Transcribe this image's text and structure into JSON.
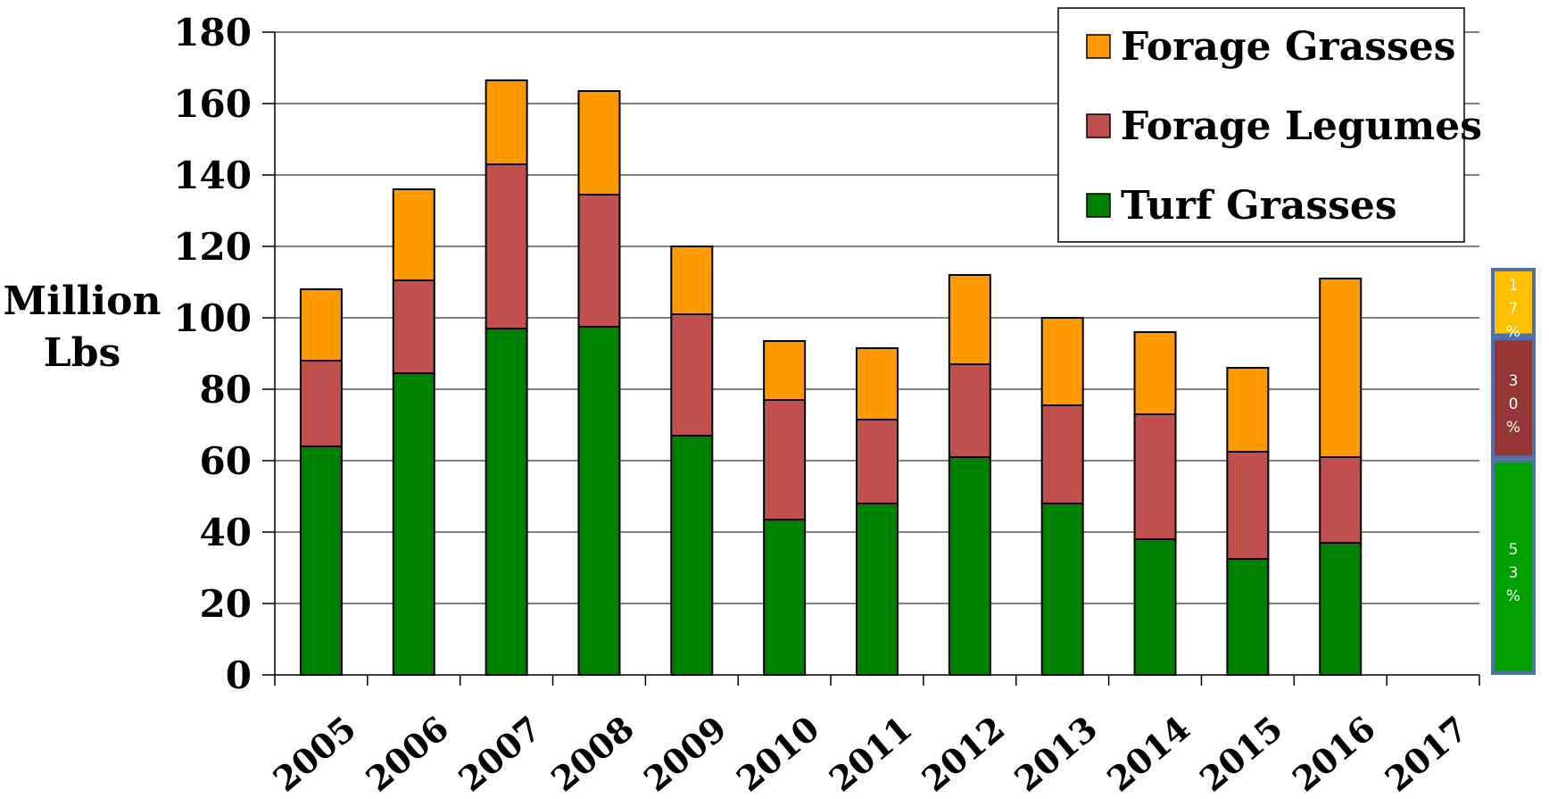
{
  "chart_data": {
    "type": "bar",
    "stacked": true,
    "title": "",
    "ylabel_lines": [
      "Million",
      "Lbs"
    ],
    "xlabel": "",
    "ylim": [
      0,
      180
    ],
    "yticks": [
      0,
      20,
      40,
      60,
      80,
      100,
      120,
      140,
      160,
      180
    ],
    "grid": true,
    "legend_position": "top-right",
    "categories": [
      "2005",
      "2006",
      "2007",
      "2008",
      "2009",
      "2010",
      "2011",
      "2012",
      "2013",
      "2014",
      "2015",
      "2016",
      "2017"
    ],
    "series": [
      {
        "name": "Turf Grasses",
        "color": "#008000",
        "values": [
          64,
          84.5,
          97,
          97.5,
          67,
          43.5,
          48,
          61,
          48,
          38,
          32.5,
          37,
          null
        ]
      },
      {
        "name": "Forage Legumes",
        "color": "#c0504d",
        "values": [
          24,
          26,
          46,
          37,
          34,
          33.5,
          23.5,
          26,
          27.5,
          35,
          30,
          24,
          null
        ]
      },
      {
        "name": "Forage Grasses",
        "color": "#ff9900",
        "values": [
          20,
          25.5,
          23.5,
          29,
          19,
          16.5,
          20,
          25,
          24.5,
          23,
          23.5,
          50,
          null
        ]
      }
    ],
    "legend_order": [
      "Forage Grasses",
      "Forage Legumes",
      "Turf Grasses"
    ],
    "share_2017": [
      {
        "series": "Forage Grasses",
        "label": "17%",
        "color": "#ffc000",
        "text_color": "#ffffff"
      },
      {
        "series": "Forage Legumes",
        "label": "30%",
        "color": "#943634",
        "text_color": "#ffffff"
      },
      {
        "series": "Turf Grasses",
        "label": "53%",
        "color": "#00a000",
        "text_color": "#ffffff"
      }
    ],
    "share_2017_border_color": "#4f6fa8"
  }
}
